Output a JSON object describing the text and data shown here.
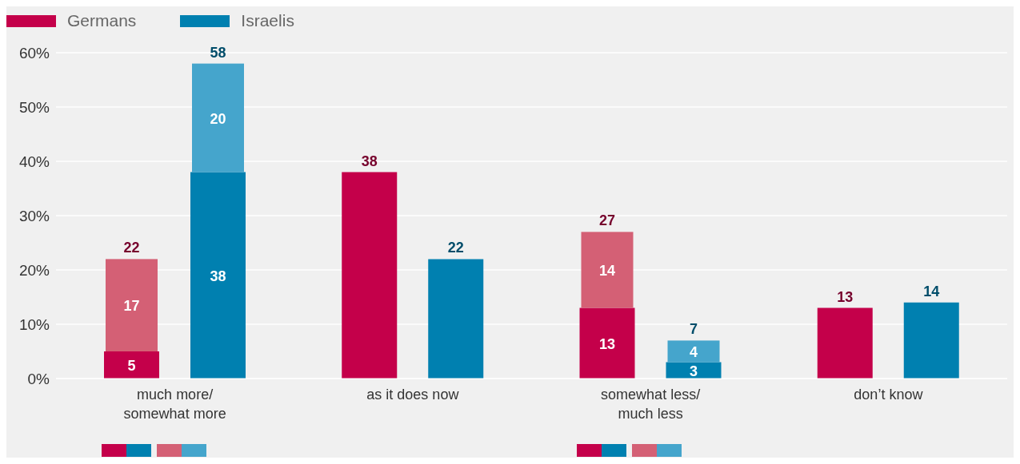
{
  "chart_data": {
    "type": "bar",
    "categories": [
      "much more/\nsomewhat more",
      "as it does now",
      "somewhat less/\nmuch less",
      "don’t know"
    ],
    "series": [
      {
        "name": "Germans",
        "color": "#c4004a",
        "values": [
          5,
          38,
          13,
          13
        ],
        "value_labels": [
          "5",
          "38",
          "13",
          "13"
        ]
      },
      {
        "color": "#d46075",
        "values": [
          17,
          null,
          14,
          null
        ],
        "base": [
          5,
          null,
          13,
          null
        ],
        "value_labels": [
          "17",
          null,
          "14",
          null
        ]
      },
      {
        "name": "Israelis",
        "color": "#0080b0",
        "values": [
          38,
          22,
          3,
          14
        ],
        "value_labels": [
          "38",
          "22",
          "3",
          "14"
        ]
      },
      {
        "color": "#45a5cc",
        "values": [
          20,
          null,
          4,
          null
        ],
        "base": [
          38,
          null,
          3,
          null
        ],
        "value_labels": [
          "20",
          null,
          "4",
          null
        ]
      }
    ],
    "totals": [
      [
        "22",
        null,
        "27",
        null
      ],
      [
        "58",
        null,
        "7",
        null
      ]
    ],
    "ylim": [
      0,
      60
    ],
    "yticks": [
      {
        "value": 0,
        "label": "0%"
      },
      {
        "value": 10,
        "label": "10%"
      },
      {
        "value": 20,
        "label": "20%"
      },
      {
        "value": 30,
        "label": "30%"
      },
      {
        "value": 40,
        "label": "40%"
      },
      {
        "value": 50,
        "label": "50%"
      },
      {
        "value": 60,
        "label": "60%"
      }
    ],
    "grid": "y",
    "legend": "top left"
  }
}
